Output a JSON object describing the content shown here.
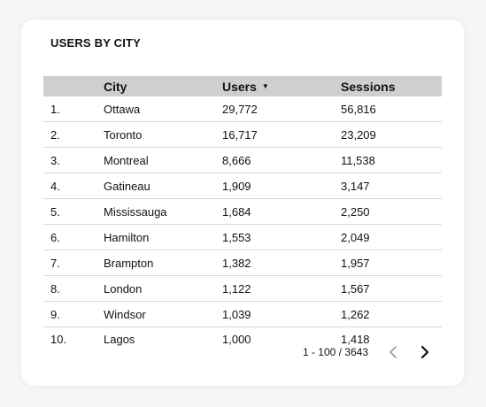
{
  "widget": {
    "title": "USERS BY CITY"
  },
  "table": {
    "columns": {
      "city": "City",
      "users": "Users",
      "sessions": "Sessions"
    },
    "sort_icon": "▼",
    "rows": [
      {
        "idx": "1.",
        "city": "Ottawa",
        "users": "29,772",
        "sessions": "56,816"
      },
      {
        "idx": "2.",
        "city": "Toronto",
        "users": "16,717",
        "sessions": "23,209"
      },
      {
        "idx": "3.",
        "city": "Montreal",
        "users": "8,666",
        "sessions": "11,538"
      },
      {
        "idx": "4.",
        "city": "Gatineau",
        "users": "1,909",
        "sessions": "3,147"
      },
      {
        "idx": "5.",
        "city": "Mississauga",
        "users": "1,684",
        "sessions": "2,250"
      },
      {
        "idx": "6.",
        "city": "Hamilton",
        "users": "1,553",
        "sessions": "2,049"
      },
      {
        "idx": "7.",
        "city": "Brampton",
        "users": "1,382",
        "sessions": "1,957"
      },
      {
        "idx": "8.",
        "city": "London",
        "users": "1,122",
        "sessions": "1,567"
      },
      {
        "idx": "9.",
        "city": "Windsor",
        "users": "1,039",
        "sessions": "1,262"
      },
      {
        "idx": "10.",
        "city": "Lagos",
        "users": "1,000",
        "sessions": "1,418"
      }
    ]
  },
  "pagination": {
    "label": "1 - 100 / 3643",
    "prev_icon": "chevron-left-icon",
    "next_icon": "chevron-right-icon"
  },
  "colors": {
    "header_bg": "#cfcfcf",
    "row_divider": "#d8d8d8",
    "prev_disabled": "#9a9a9a",
    "next_enabled": "#111111"
  }
}
